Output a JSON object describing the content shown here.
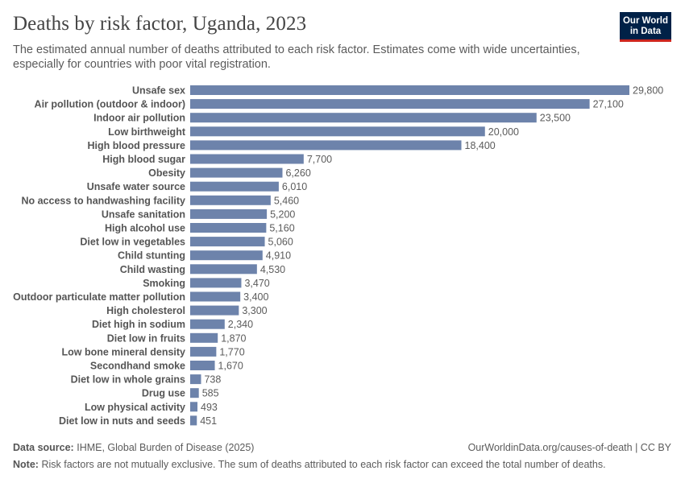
{
  "header": {
    "title": "Deaths by risk factor, Uganda, 2023",
    "subtitle": "The estimated annual number of deaths attributed to each risk factor. Estimates come with wide uncertainties, especially for countries with poor vital registration."
  },
  "logo": {
    "line1": "Our World",
    "line2": "in Data",
    "bg_color": "#002147",
    "accent_color": "#ce261e"
  },
  "footer": {
    "source_label": "Data source:",
    "source_text": "IHME, Global Burden of Disease (2025)",
    "url_text": "OurWorldinData.org/causes-of-death | CC BY",
    "note_label": "Note:",
    "note_text": "Risk factors are not mutually exclusive. The sum of deaths attributed to each risk factor can exceed the total number of deaths."
  },
  "chart_data": {
    "type": "bar",
    "orientation": "horizontal",
    "bar_color": "#6d83ab",
    "categories": [
      "Unsafe sex",
      "Air pollution (outdoor & indoor)",
      "Indoor air pollution",
      "Low birthweight",
      "High blood pressure",
      "High blood sugar",
      "Obesity",
      "Unsafe water source",
      "No access to handwashing facility",
      "Unsafe sanitation",
      "High alcohol use",
      "Diet low in vegetables",
      "Child stunting",
      "Child wasting",
      "Smoking",
      "Outdoor particulate matter pollution",
      "High cholesterol",
      "Diet high in sodium",
      "Diet low in fruits",
      "Low bone mineral density",
      "Secondhand smoke",
      "Diet low in whole grains",
      "Drug use",
      "Low physical activity",
      "Diet low in nuts and seeds"
    ],
    "values": [
      29800,
      27100,
      23500,
      20000,
      18400,
      7700,
      6260,
      6010,
      5460,
      5200,
      5160,
      5060,
      4910,
      4530,
      3470,
      3400,
      3300,
      2340,
      1870,
      1770,
      1670,
      738,
      585,
      493,
      451
    ],
    "value_labels": [
      "29,800",
      "27,100",
      "23,500",
      "20,000",
      "18,400",
      "7,700",
      "6,260",
      "6,010",
      "5,460",
      "5,200",
      "5,160",
      "5,060",
      "4,910",
      "4,530",
      "3,470",
      "3,400",
      "3,300",
      "2,340",
      "1,870",
      "1,770",
      "1,670",
      "738",
      "585",
      "493",
      "451"
    ],
    "xlim": [
      0,
      29800
    ],
    "grid": false,
    "legend": "none"
  }
}
